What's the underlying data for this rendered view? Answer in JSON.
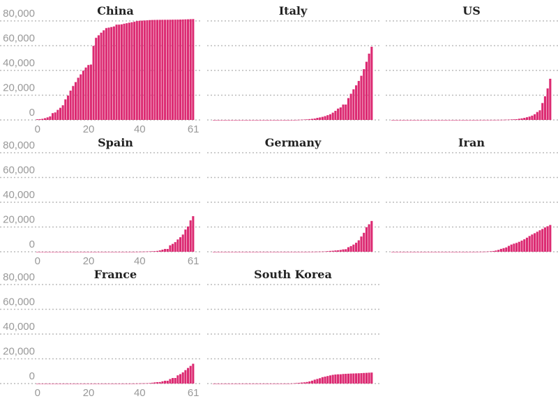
{
  "chart_data": {
    "type": "bar",
    "layout": "small-multiples 3 columns",
    "bar_color": "#dc2a72",
    "grid_color": "#bbbbbb",
    "grid": true,
    "ylim": [
      0,
      80000
    ],
    "yticks": [
      0,
      20000,
      40000,
      60000,
      80000
    ],
    "ytick_labels": [
      "0",
      "20,000",
      "40,000",
      "60,000",
      "80,000"
    ],
    "xticks": [
      0,
      20,
      40,
      61
    ],
    "xtick_labels": [
      "0",
      "20",
      "40",
      "61"
    ],
    "panels": [
      {
        "title": "China",
        "values": [
          548,
          643,
          920,
          1406,
          2075,
          2877,
          5509,
          6087,
          8141,
          9802,
          11891,
          16630,
          19716,
          23707,
          27440,
          30587,
          34110,
          36814,
          39829,
          42354,
          44386,
          44759,
          59895,
          66358,
          68413,
          70513,
          72434,
          74211,
          74619,
          75077,
          75550,
          77001,
          77022,
          77241,
          77754,
          78166,
          78600,
          78928,
          79356,
          79932,
          80136,
          80261,
          80386,
          80537,
          80690,
          80770,
          80823,
          80860,
          80887,
          80921,
          80932,
          80945,
          80977,
          81003,
          81033,
          81058,
          81102,
          81156,
          81250,
          81305,
          81435,
          81498
        ]
      },
      {
        "title": "Italy",
        "values": [
          0,
          0,
          0,
          0,
          0,
          0,
          0,
          0,
          0,
          0,
          2,
          2,
          2,
          2,
          2,
          2,
          3,
          3,
          3,
          3,
          3,
          3,
          3,
          3,
          3,
          3,
          3,
          3,
          3,
          3,
          3,
          20,
          62,
          155,
          229,
          322,
          453,
          655,
          888,
          1128,
          1694,
          2036,
          2502,
          3089,
          3858,
          4636,
          5883,
          7375,
          9172,
          10149,
          12462,
          12462,
          17660,
          21157,
          24747,
          27980,
          31506,
          35713,
          41035,
          47021,
          53578,
          59138
        ]
      },
      {
        "title": "US",
        "values": [
          0,
          1,
          1,
          2,
          2,
          5,
          5,
          5,
          5,
          5,
          7,
          8,
          8,
          11,
          11,
          11,
          11,
          11,
          11,
          11,
          11,
          12,
          12,
          13,
          13,
          13,
          13,
          13,
          13,
          13,
          13,
          15,
          15,
          15,
          51,
          51,
          57,
          58,
          60,
          68,
          74,
          98,
          118,
          149,
          217,
          262,
          402,
          518,
          583,
          959,
          1281,
          1663,
          2179,
          2727,
          3499,
          4632,
          6421,
          7786,
          13680,
          19101,
          25493,
          33276
        ]
      },
      {
        "title": "Spain",
        "values": [
          0,
          0,
          0,
          0,
          0,
          0,
          0,
          0,
          0,
          0,
          1,
          1,
          1,
          1,
          1,
          1,
          1,
          1,
          1,
          2,
          2,
          2,
          2,
          2,
          2,
          2,
          2,
          2,
          2,
          2,
          2,
          2,
          2,
          2,
          2,
          6,
          13,
          15,
          32,
          45,
          84,
          120,
          165,
          222,
          259,
          400,
          500,
          673,
          1073,
          1695,
          2277,
          2277,
          5232,
          6391,
          7798,
          9942,
          11748,
          13910,
          17963,
          20410,
          25374,
          28768
        ]
      },
      {
        "title": "Germany",
        "values": [
          0,
          0,
          0,
          0,
          0,
          0,
          1,
          4,
          4,
          4,
          5,
          8,
          10,
          12,
          12,
          12,
          12,
          13,
          13,
          14,
          14,
          16,
          16,
          16,
          16,
          16,
          16,
          16,
          16,
          16,
          16,
          16,
          16,
          16,
          16,
          17,
          27,
          46,
          48,
          79,
          130,
          159,
          196,
          262,
          482,
          670,
          799,
          1040,
          1176,
          1457,
          1908,
          2078,
          3675,
          4585,
          5795,
          7272,
          9257,
          12327,
          15320,
          19848,
          22213,
          24873
        ]
      },
      {
        "title": "Iran",
        "values": [
          0,
          0,
          0,
          0,
          0,
          0,
          0,
          0,
          0,
          0,
          0,
          0,
          0,
          0,
          0,
          0,
          0,
          0,
          0,
          0,
          0,
          0,
          0,
          0,
          0,
          0,
          0,
          0,
          0,
          2,
          5,
          18,
          28,
          43,
          61,
          95,
          139,
          245,
          388,
          593,
          978,
          1501,
          2336,
          2922,
          3513,
          4747,
          5823,
          6566,
          7161,
          8042,
          9000,
          10075,
          11364,
          12729,
          13938,
          14991,
          16169,
          17361,
          18407,
          19644,
          20610,
          21638
        ]
      },
      {
        "title": "France",
        "values": [
          0,
          0,
          0,
          2,
          3,
          3,
          3,
          4,
          5,
          5,
          5,
          6,
          6,
          6,
          6,
          6,
          6,
          6,
          11,
          11,
          11,
          11,
          11,
          11,
          11,
          12,
          12,
          12,
          12,
          12,
          12,
          12,
          12,
          12,
          12,
          14,
          18,
          38,
          57,
          100,
          130,
          191,
          204,
          288,
          380,
          656,
          957,
          1134,
          1217,
          1792,
          2289,
          2289,
          3672,
          4480,
          4513,
          6650,
          7652,
          9043,
          10871,
          12612,
          14282,
          16018
        ]
      },
      {
        "title": "South Korea",
        "values": [
          0,
          1,
          1,
          2,
          2,
          3,
          4,
          4,
          4,
          4,
          11,
          12,
          15,
          15,
          16,
          19,
          23,
          24,
          24,
          25,
          27,
          28,
          28,
          28,
          28,
          28,
          29,
          30,
          31,
          31,
          104,
          204,
          433,
          602,
          833,
          977,
          1261,
          1766,
          2337,
          3150,
          3736,
          4335,
          5186,
          5621,
          6088,
          6593,
          7041,
          7314,
          7478,
          7513,
          7755,
          7869,
          7979,
          8086,
          8162,
          8236,
          8320,
          8413,
          8565,
          8652,
          8799,
          8897
        ]
      }
    ]
  }
}
